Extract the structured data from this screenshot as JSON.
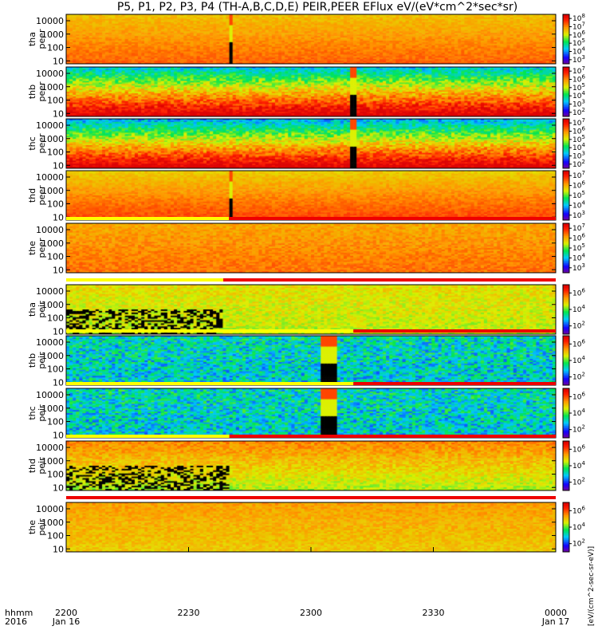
{
  "chart_data": {
    "type": "heatmap",
    "title": "P5, P1, P2, P3, P4 (TH-A,B,C,D,E) PEIR,PEER EFlux eV/(eV*cm^2*sec*sr)",
    "colorbar_label": "[eV/(cm^2-sec-sr-eV)]",
    "x_axis": {
      "corner_labels": [
        "hhmm",
        "2016"
      ],
      "ticks": [
        {
          "t": 0,
          "label": "2200",
          "date": "Jan 16"
        },
        {
          "t": 30,
          "label": "2230",
          "date": ""
        },
        {
          "t": 60,
          "label": "2300",
          "date": ""
        },
        {
          "t": 90,
          "label": "2330",
          "date": ""
        },
        {
          "t": 120,
          "label": "0000",
          "date": "Jan 17"
        }
      ],
      "range_minutes": [
        0,
        120
      ]
    },
    "y_axis": {
      "scale": "log",
      "ticks": [
        "10",
        "100",
        "1000",
        "10000"
      ],
      "range": [
        6,
        30000
      ]
    },
    "panels": [
      {
        "probe": "tha",
        "species": "peer",
        "cb_ticks": [
          "10^3",
          "10^4",
          "10^5",
          "10^6",
          "10^7",
          "10^8"
        ],
        "mode_bar": false,
        "cmin": 3,
        "cmax": 8,
        "base_low": 7.1,
        "base_high": 6.4,
        "noise": 0.2,
        "blackout": [
          [
            39.7,
            41.1
          ]
        ],
        "mode_change": null
      },
      {
        "probe": "thb",
        "species": "peer",
        "cb_ticks": [
          "10^2",
          "10^3",
          "10^4",
          "10^5",
          "10^6",
          "10^7"
        ],
        "mode_bar": false,
        "cmin": 2,
        "cmax": 7,
        "base_low": 7.2,
        "base_high": 3.6,
        "noise": 0.5,
        "blackout": [
          [
            69.3,
            71.3
          ]
        ],
        "mode_change": null
      },
      {
        "probe": "thc",
        "species": "peer",
        "cb_ticks": [
          "10^2",
          "10^3",
          "10^4",
          "10^5",
          "10^6",
          "10^7"
        ],
        "mode_bar": false,
        "cmin": 2,
        "cmax": 7,
        "base_low": 7.2,
        "base_high": 3.4,
        "noise": 0.5,
        "blackout": [
          [
            69.3,
            71.3
          ]
        ],
        "mode_change": null
      },
      {
        "probe": "thd",
        "species": "peer",
        "cb_ticks": [
          "10^3",
          "10^4",
          "10^5",
          "10^6",
          "10^7"
        ],
        "mode_bar": false,
        "cmin": 3,
        "cmax": 8,
        "base_low": 7.3,
        "base_high": 6.3,
        "noise": 0.2,
        "blackout": [
          [
            39.7,
            41.1
          ]
        ],
        "mode_change": null
      },
      {
        "probe": "the",
        "species": "peer",
        "cb_ticks": [
          "10^3",
          "10^4",
          "10^5",
          "10^6",
          "10^7"
        ],
        "mode_bar": true,
        "cmin": 3,
        "cmax": 8,
        "base_low": 7.0,
        "base_high": 6.6,
        "noise": 0.25,
        "blackout": [],
        "mode_change": 39.9
      },
      {
        "probe": "tha",
        "species": "peir",
        "cb_ticks": [
          "10^2",
          "10^4",
          "10^6"
        ],
        "mode_bar": true,
        "cmin": 1,
        "cmax": 7,
        "base_low": 4.5,
        "base_high": 4.8,
        "noise": 0.4,
        "blackout": [],
        "mode_change": 38.5
      },
      {
        "probe": "thb",
        "species": "peir",
        "cb_ticks": [
          "10^2",
          "10^4",
          "10^6"
        ],
        "mode_bar": true,
        "cmin": 1,
        "cmax": 7,
        "base_low": 3.0,
        "base_high": 3.2,
        "noise": 0.9,
        "blackout": [
          [
            62.5,
            66.5
          ]
        ],
        "mode_change": 70.4
      },
      {
        "probe": "thc",
        "species": "peir",
        "cb_ticks": [
          "10^2",
          "10^4",
          "10^6"
        ],
        "mode_bar": true,
        "cmin": 1,
        "cmax": 7,
        "base_low": 3.0,
        "base_high": 3.2,
        "noise": 0.9,
        "blackout": [
          [
            62.5,
            66.5
          ]
        ],
        "mode_change": 70.4
      },
      {
        "probe": "thd",
        "species": "peir",
        "cb_ticks": [
          "10^2",
          "10^4",
          "10^6"
        ],
        "mode_bar": true,
        "cmin": 1,
        "cmax": 7,
        "base_low": 4.4,
        "base_high": 5.6,
        "noise": 0.4,
        "blackout": [],
        "mode_change": 40.0
      },
      {
        "probe": "the",
        "species": "peir",
        "cb_ticks": [
          "10^2",
          "10^4",
          "10^6"
        ],
        "mode_bar": true,
        "cmin": 1,
        "cmax": 7,
        "base_low": 5.0,
        "base_high": 5.4,
        "noise": 0.3,
        "blackout": [],
        "mode_change": null
      }
    ],
    "mode_bar_colors": {
      "fast": "#ee0000",
      "slow": "#ffff00"
    },
    "grid": false,
    "legend": "none"
  }
}
